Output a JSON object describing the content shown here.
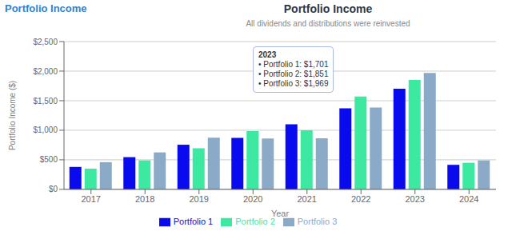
{
  "chart_data": {
    "type": "bar",
    "title": "Portfolio Income",
    "subtitle": "All dividends and distributions were reinvested",
    "annotations": [
      "Portfolio Income",
      "2023\n• Portfolio 1: $1,701\n• Portfolio 2: $1,851\n• Portfolio 3: $1,969"
    ],
    "xlabel": "Year",
    "ylabel": "Portfolio Income ($)",
    "categories": [
      "2017",
      "2018",
      "2019",
      "2020",
      "2021",
      "2022",
      "2023",
      "2024"
    ],
    "series": [
      {
        "name": "Portfolio 1",
        "color": "#0a0aee",
        "values": [
          380,
          545,
          755,
          870,
          1100,
          1370,
          1701,
          415
        ]
      },
      {
        "name": "Portfolio 2",
        "color": "#3de8a0",
        "values": [
          350,
          490,
          695,
          985,
          1000,
          1570,
          1851,
          450
        ]
      },
      {
        "name": "Portfolio 3",
        "color": "#8baac8",
        "values": [
          460,
          625,
          875,
          860,
          865,
          1385,
          1969,
          490
        ]
      }
    ],
    "ylim": [
      0,
      2500
    ],
    "yticks": [
      {
        "value": 0,
        "label": "$0"
      },
      {
        "value": 500,
        "label": "$500"
      },
      {
        "value": 1000,
        "label": "$1,000"
      },
      {
        "value": 1500,
        "label": "$1,500"
      },
      {
        "value": 2000,
        "label": "$2,000"
      },
      {
        "value": 2500,
        "label": "$2,500"
      }
    ],
    "grid": true,
    "legend": "bottom"
  }
}
